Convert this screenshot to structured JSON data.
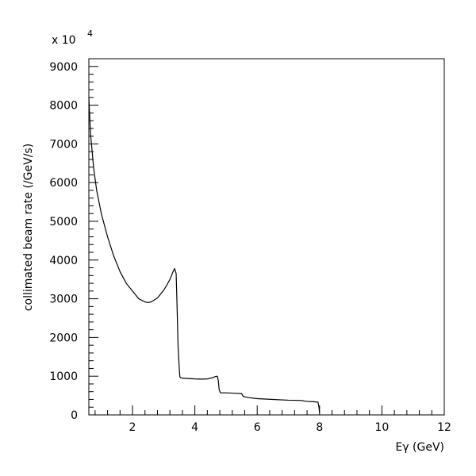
{
  "chart_data": {
    "type": "line",
    "title": "",
    "xlabel": "Eγ (GeV)",
    "ylabel": "collimated beam rate (/GeV/s)",
    "multiplier_base": "x 10",
    "multiplier_exp": "4",
    "xlim": [
      0.6,
      12
    ],
    "ylim": [
      0,
      9200
    ],
    "x_ticks": [
      2,
      4,
      6,
      8,
      10,
      12
    ],
    "x_tick_labels": [
      "2",
      "4",
      "6",
      "8",
      "10",
      "12"
    ],
    "y_ticks": [
      0,
      1000,
      2000,
      3000,
      4000,
      5000,
      6000,
      7000,
      8000,
      9000
    ],
    "y_tick_labels": [
      "0",
      "1000",
      "2000",
      "3000",
      "4000",
      "5000",
      "6000",
      "7000",
      "8000",
      "9000"
    ],
    "grid": false,
    "color": "#000000",
    "series": [
      {
        "x": [
          0.6,
          0.65,
          0.75,
          0.85,
          1.0,
          1.2,
          1.4,
          1.6,
          1.8,
          2.0,
          2.2,
          2.4,
          2.5,
          2.6,
          2.8,
          3.0,
          3.1,
          3.2,
          3.3,
          3.35,
          3.4,
          3.43,
          3.46,
          3.5,
          3.52,
          3.55,
          3.6,
          3.8,
          4.0,
          4.2,
          4.4,
          4.6,
          4.65,
          4.72,
          4.75,
          4.78,
          4.82,
          5.0,
          5.3,
          5.5,
          5.55,
          5.7,
          6.0,
          6.5,
          7.0,
          7.4,
          7.5,
          7.6,
          7.8,
          7.95,
          7.98,
          8.0
        ],
        "y": [
          8200,
          7300,
          6400,
          5800,
          5200,
          4600,
          4100,
          3700,
          3400,
          3200,
          3000,
          2920,
          2900,
          2920,
          3020,
          3220,
          3350,
          3500,
          3700,
          3780,
          3650,
          2800,
          1800,
          1200,
          980,
          960,
          950,
          940,
          930,
          925,
          930,
          970,
          990,
          1000,
          900,
          650,
          570,
          570,
          560,
          550,
          480,
          450,
          420,
          400,
          380,
          375,
          360,
          350,
          340,
          330,
          200,
          50
        ]
      }
    ]
  }
}
